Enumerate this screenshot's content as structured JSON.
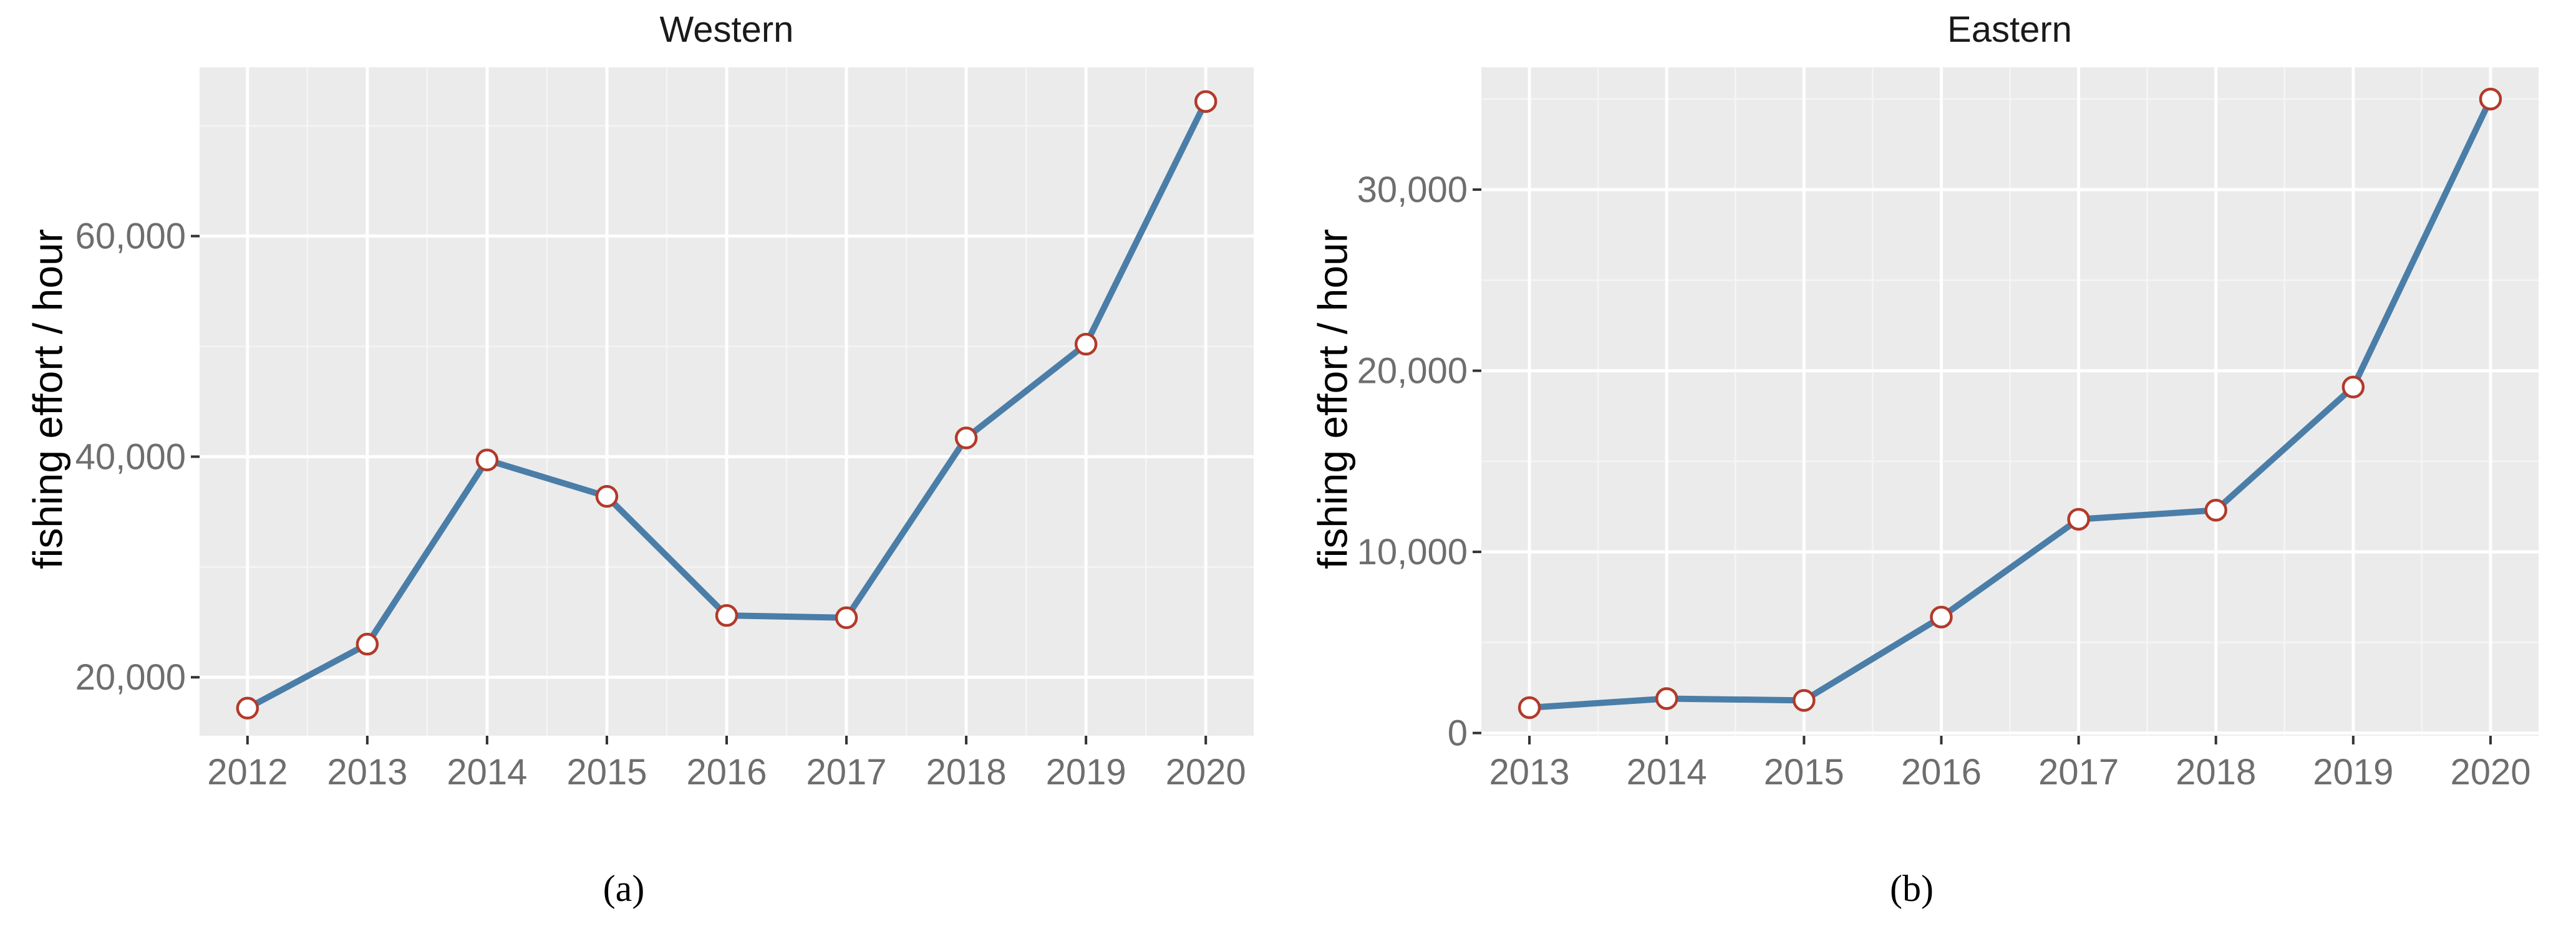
{
  "colors": {
    "panel_background": "#ebebeb",
    "grid": "#ffffff",
    "line": "#4a7ea8",
    "point_fill": "#ffffff",
    "point_stroke": "#b23a2a",
    "tick_text": "#6e6e6e"
  },
  "chart_data": [
    {
      "type": "line",
      "title": "Western",
      "caption": "(a)",
      "xlabel": "",
      "ylabel": "fishing effort / hour",
      "x": [
        "2012",
        "2013",
        "2014",
        "2015",
        "2016",
        "2017",
        "2018",
        "2019",
        "2020"
      ],
      "series": [
        {
          "values": [
            17200,
            23000,
            39700,
            36400,
            25600,
            25400,
            41700,
            50200,
            72200
          ]
        }
      ],
      "xlim": [
        2011.6,
        2020.4
      ],
      "ylim": [
        14700,
        75300
      ],
      "yticks": [
        20000,
        40000,
        60000
      ],
      "ytick_labels": [
        "20,000",
        "40,000",
        "60,000"
      ],
      "grid": true,
      "markers": "open-circle"
    },
    {
      "type": "line",
      "title": "Eastern",
      "caption": "(b)",
      "xlabel": "",
      "ylabel": "fishing effort / hour",
      "x": [
        "2013",
        "2014",
        "2015",
        "2016",
        "2017",
        "2018",
        "2019",
        "2020"
      ],
      "series": [
        {
          "values": [
            1400,
            1900,
            1800,
            6400,
            11800,
            12300,
            19100,
            35000
          ]
        }
      ],
      "xlim": [
        2012.65,
        2020.35
      ],
      "ylim": [
        -150,
        36750
      ],
      "yticks": [
        0,
        10000,
        20000,
        30000
      ],
      "ytick_labels": [
        "0",
        "10,000",
        "20,000",
        "30,000"
      ],
      "grid": true,
      "markers": "open-circle"
    }
  ]
}
